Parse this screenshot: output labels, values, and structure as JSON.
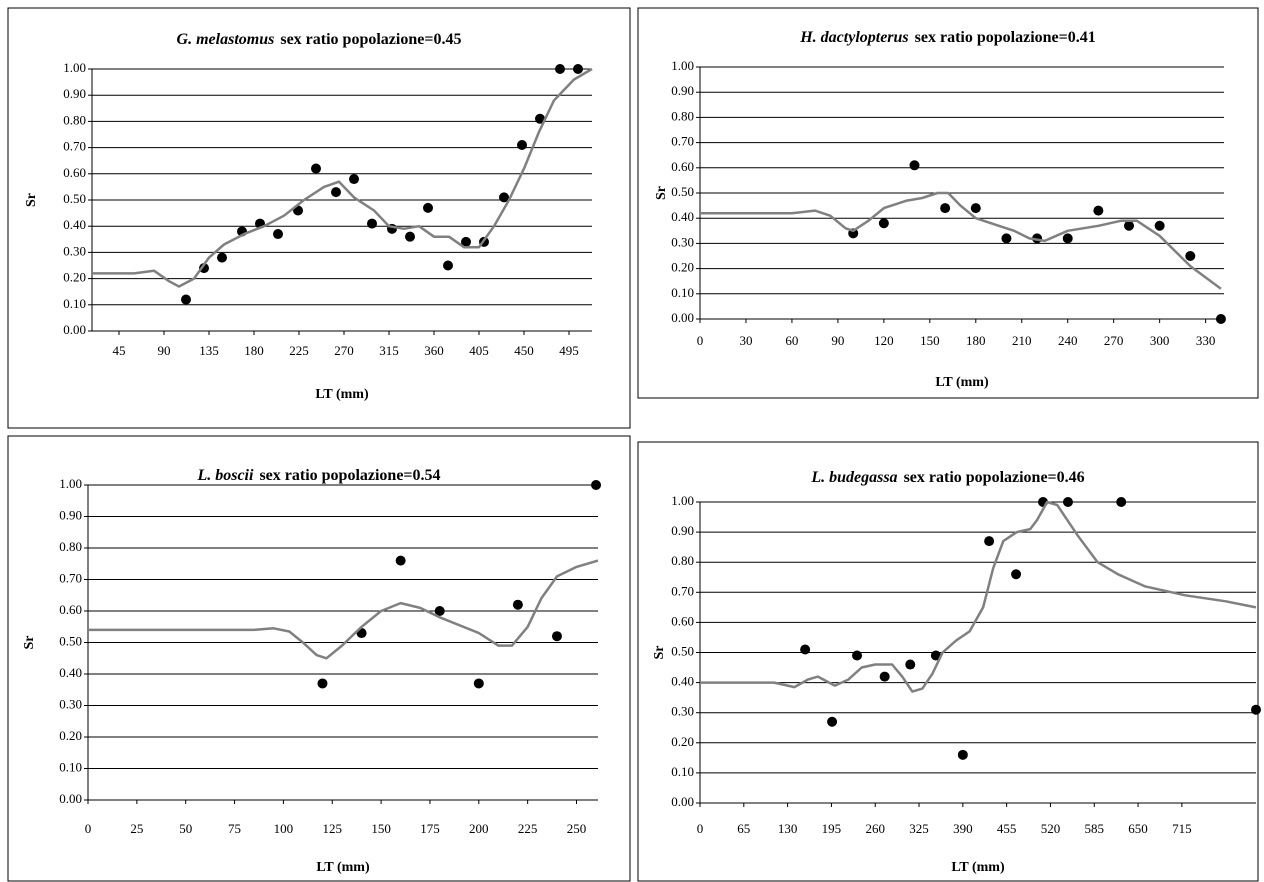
{
  "chart_data": [
    {
      "type": "line-scatter",
      "species": "G. melastomus",
      "title": "sex ratio popolazione=0.45",
      "x_label": "LT (mm)",
      "y_label": "Sr",
      "xlim": [
        18,
        518
      ],
      "xticks": [
        45,
        90,
        135,
        180,
        225,
        270,
        315,
        360,
        405,
        450,
        495
      ],
      "ylim": [
        0,
        1
      ],
      "yticks": [
        {
          "value": 0,
          "label": "0.00"
        },
        {
          "value": 0.1,
          "label": "0.10"
        },
        {
          "value": 0.2,
          "label": "0.20"
        },
        {
          "value": 0.3,
          "label": "0.30"
        },
        {
          "value": 0.4,
          "label": "0.40"
        },
        {
          "value": 0.5,
          "label": "0.50"
        },
        {
          "value": 0.6,
          "label": "0.60"
        },
        {
          "value": 0.7,
          "label": "0.70"
        },
        {
          "value": 0.8,
          "label": "0.80"
        },
        {
          "value": 0.9,
          "label": "0.90"
        },
        {
          "value": 1,
          "label": "1.00"
        }
      ],
      "grid": true,
      "series": [
        {
          "kind": "markers",
          "color": "#000000",
          "x": [
            112,
            130,
            148,
            168,
            186,
            204,
            224,
            242,
            262,
            280,
            298,
            318,
            336,
            354,
            374,
            392,
            410,
            430,
            448,
            466,
            486,
            504
          ],
          "values": [
            0.12,
            0.24,
            0.28,
            0.38,
            0.41,
            0.37,
            0.46,
            0.62,
            0.53,
            0.58,
            0.41,
            0.39,
            0.36,
            0.47,
            0.25,
            0.34,
            0.34,
            0.51,
            0.71,
            0.81,
            1.0,
            1.0
          ]
        },
        {
          "kind": "line",
          "color": "#808080",
          "x": [
            18,
            60,
            80,
            95,
            105,
            120,
            135,
            150,
            170,
            190,
            210,
            230,
            250,
            265,
            280,
            300,
            315,
            330,
            345,
            360,
            375,
            390,
            405,
            420,
            435,
            450,
            465,
            480,
            500,
            518
          ],
          "values": [
            0.22,
            0.22,
            0.23,
            0.19,
            0.17,
            0.2,
            0.28,
            0.33,
            0.37,
            0.4,
            0.44,
            0.5,
            0.55,
            0.57,
            0.51,
            0.46,
            0.4,
            0.39,
            0.4,
            0.36,
            0.36,
            0.32,
            0.32,
            0.4,
            0.5,
            0.62,
            0.76,
            0.88,
            0.96,
            1.0
          ]
        }
      ]
    },
    {
      "type": "line-scatter",
      "species": "H. dactylopterus",
      "title": "sex ratio popolazione=0.41",
      "x_label": "LT (mm)",
      "y_label": "Sr",
      "xlim": [
        0,
        342
      ],
      "xticks": [
        0,
        30,
        60,
        90,
        120,
        150,
        180,
        210,
        240,
        270,
        300,
        330
      ],
      "ylim": [
        0,
        1
      ],
      "yticks": [
        {
          "value": 0,
          "label": "0.00"
        },
        {
          "value": 0.1,
          "label": "0.10"
        },
        {
          "value": 0.2,
          "label": "0.20"
        },
        {
          "value": 0.3,
          "label": "0.30"
        },
        {
          "value": 0.4,
          "label": "0.40"
        },
        {
          "value": 0.5,
          "label": "0.50"
        },
        {
          "value": 0.6,
          "label": "0.60"
        },
        {
          "value": 0.7,
          "label": "0.70"
        },
        {
          "value": 0.8,
          "label": "0.80"
        },
        {
          "value": 0.9,
          "label": "0.90"
        },
        {
          "value": 1,
          "label": "1.00"
        }
      ],
      "grid": true,
      "series": [
        {
          "kind": "markers",
          "color": "#000000",
          "x": [
            100,
            120,
            140,
            160,
            180,
            200,
            220,
            240,
            260,
            280,
            300,
            320,
            340
          ],
          "values": [
            0.34,
            0.38,
            0.61,
            0.44,
            0.44,
            0.32,
            0.32,
            0.32,
            0.43,
            0.37,
            0.37,
            0.25,
            0.0
          ]
        },
        {
          "kind": "line",
          "color": "#808080",
          "x": [
            0,
            60,
            75,
            85,
            95,
            100,
            110,
            120,
            135,
            145,
            155,
            162,
            170,
            180,
            195,
            205,
            215,
            225,
            240,
            260,
            275,
            285,
            300,
            320,
            340
          ],
          "values": [
            0.42,
            0.42,
            0.43,
            0.41,
            0.36,
            0.35,
            0.39,
            0.44,
            0.47,
            0.48,
            0.5,
            0.5,
            0.45,
            0.4,
            0.37,
            0.35,
            0.32,
            0.31,
            0.35,
            0.37,
            0.39,
            0.39,
            0.33,
            0.21,
            0.12
          ]
        }
      ]
    },
    {
      "type": "line-scatter",
      "species": "L. boscii",
      "title": "sex ratio popolazione=0.54",
      "x_label": "LT (mm)",
      "y_label": "Sr",
      "xlim": [
        0,
        261
      ],
      "xticks": [
        0,
        25,
        50,
        75,
        100,
        125,
        150,
        175,
        200,
        225,
        250
      ],
      "ylim": [
        0,
        1
      ],
      "yticks": [
        {
          "value": 0,
          "label": "0.00"
        },
        {
          "value": 0.1,
          "label": "0.10"
        },
        {
          "value": 0.2,
          "label": "0.20"
        },
        {
          "value": 0.3,
          "label": "0.30"
        },
        {
          "value": 0.4,
          "label": "0.40"
        },
        {
          "value": 0.5,
          "label": "0.50"
        },
        {
          "value": 0.6,
          "label": "0.60"
        },
        {
          "value": 0.7,
          "label": "0.70"
        },
        {
          "value": 0.8,
          "label": "0.80"
        },
        {
          "value": 0.9,
          "label": "0.90"
        },
        {
          "value": 1,
          "label": "1.00"
        }
      ],
      "grid": true,
      "series": [
        {
          "kind": "markers",
          "color": "#000000",
          "x": [
            120,
            140,
            160,
            180,
            200,
            220,
            240,
            260
          ],
          "values": [
            0.37,
            0.53,
            0.76,
            0.6,
            0.37,
            0.62,
            0.52,
            1.0
          ]
        },
        {
          "kind": "line",
          "color": "#808080",
          "x": [
            0,
            85,
            95,
            103,
            110,
            117,
            122,
            130,
            140,
            150,
            160,
            170,
            180,
            200,
            210,
            217,
            225,
            232,
            240,
            250,
            261
          ],
          "values": [
            0.54,
            0.54,
            0.545,
            0.535,
            0.5,
            0.46,
            0.45,
            0.49,
            0.55,
            0.6,
            0.625,
            0.61,
            0.58,
            0.53,
            0.49,
            0.49,
            0.55,
            0.64,
            0.71,
            0.74,
            0.76
          ]
        }
      ]
    },
    {
      "type": "line-scatter",
      "species": "L. budegassa",
      "title": "sex ratio popolazione=0.46",
      "x_label": "LT (mm)",
      "y_label": "Sr",
      "xlim": [
        0,
        825
      ],
      "xticks": [
        0,
        65,
        130,
        195,
        260,
        325,
        390,
        455,
        520,
        585,
        650,
        715
      ],
      "ylim": [
        0,
        1
      ],
      "yticks": [
        {
          "value": 0,
          "label": "0.00"
        },
        {
          "value": 0.1,
          "label": "0.10"
        },
        {
          "value": 0.2,
          "label": "0.20"
        },
        {
          "value": 0.3,
          "label": "0.30"
        },
        {
          "value": 0.4,
          "label": "0.40"
        },
        {
          "value": 0.5,
          "label": "0.50"
        },
        {
          "value": 0.6,
          "label": "0.60"
        },
        {
          "value": 0.7,
          "label": "0.70"
        },
        {
          "value": 0.8,
          "label": "0.80"
        },
        {
          "value": 0.9,
          "label": "0.90"
        },
        {
          "value": 1,
          "label": "1.00"
        }
      ],
      "grid": true,
      "series": [
        {
          "kind": "markers",
          "color": "#000000",
          "x": [
            156,
            196,
            233,
            274,
            312,
            350,
            390,
            429,
            469,
            509,
            546,
            625,
            825
          ],
          "values": [
            0.51,
            0.27,
            0.49,
            0.42,
            0.46,
            0.49,
            0.16,
            0.87,
            0.76,
            1.0,
            1.0,
            1.0,
            0.31
          ]
        },
        {
          "kind": "line",
          "color": "#808080",
          "x": [
            0,
            110,
            140,
            160,
            175,
            200,
            220,
            240,
            260,
            285,
            300,
            315,
            330,
            345,
            360,
            380,
            400,
            420,
            435,
            450,
            470,
            490,
            500,
            515,
            530,
            560,
            590,
            620,
            660,
            720,
            780,
            825
          ],
          "values": [
            0.4,
            0.4,
            0.385,
            0.41,
            0.42,
            0.39,
            0.41,
            0.45,
            0.46,
            0.46,
            0.42,
            0.37,
            0.38,
            0.43,
            0.5,
            0.54,
            0.57,
            0.65,
            0.78,
            0.87,
            0.9,
            0.91,
            0.94,
            1.0,
            0.99,
            0.89,
            0.8,
            0.76,
            0.72,
            0.69,
            0.67,
            0.65
          ]
        }
      ]
    }
  ]
}
